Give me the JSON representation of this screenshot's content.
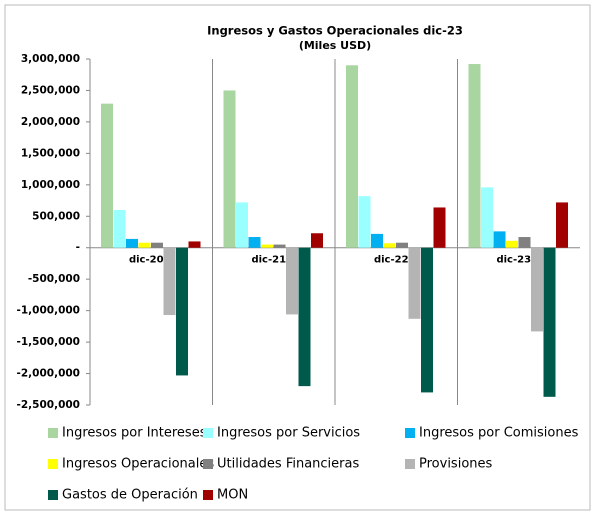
{
  "chart_data": {
    "type": "bar",
    "title": "Ingresos y Gastos Operacionales dic-23",
    "subtitle": "(Miles USD)",
    "categories": [
      "dic-20",
      "dic-21",
      "dic-22",
      "dic-23"
    ],
    "series": [
      {
        "name": "Ingresos por Intereses",
        "color": "#a9d5a0",
        "values": [
          2290000,
          2500000,
          2900000,
          2920000
        ]
      },
      {
        "name": "Ingresos por Servicios",
        "color": "#99ffff",
        "values": [
          600000,
          720000,
          820000,
          960000
        ]
      },
      {
        "name": "Ingresos por Comisiones",
        "color": "#00b0f0",
        "values": [
          140000,
          170000,
          220000,
          260000
        ]
      },
      {
        "name": "Ingresos Operacionales",
        "color": "#ffff00",
        "values": [
          80000,
          50000,
          70000,
          110000
        ]
      },
      {
        "name": "Utilidades Financieras",
        "color": "#808080",
        "values": [
          80000,
          50000,
          80000,
          170000
        ]
      },
      {
        "name": "Provisiones",
        "color": "#b4b4b4",
        "values": [
          -1070000,
          -1060000,
          -1130000,
          -1330000
        ]
      },
      {
        "name": "Gastos de Operación",
        "color": "#005a4c",
        "values": [
          -2030000,
          -2200000,
          -2300000,
          -2370000
        ]
      },
      {
        "name": "MON",
        "color": "#a00000",
        "values": [
          100000,
          230000,
          640000,
          720000
        ]
      }
    ],
    "ylim": [
      -2500000,
      3000000
    ],
    "yticks": [
      {
        "value": -2500000,
        "label": "-2,500,000"
      },
      {
        "value": -2000000,
        "label": "-2,000,000"
      },
      {
        "value": -1500000,
        "label": "-1,500,000"
      },
      {
        "value": -1000000,
        "label": "-1,000,000"
      },
      {
        "value": -500000,
        "label": "-500,000"
      },
      {
        "value": 0,
        "label": "-"
      },
      {
        "value": 500000,
        "label": "500,000"
      },
      {
        "value": 1000000,
        "label": "1,000,000"
      },
      {
        "value": 1500000,
        "label": "1,500,000"
      },
      {
        "value": 2000000,
        "label": "2,000,000"
      },
      {
        "value": 2500000,
        "label": "2,500,000"
      },
      {
        "value": 3000000,
        "label": "3,000,000"
      }
    ],
    "grid": false
  }
}
